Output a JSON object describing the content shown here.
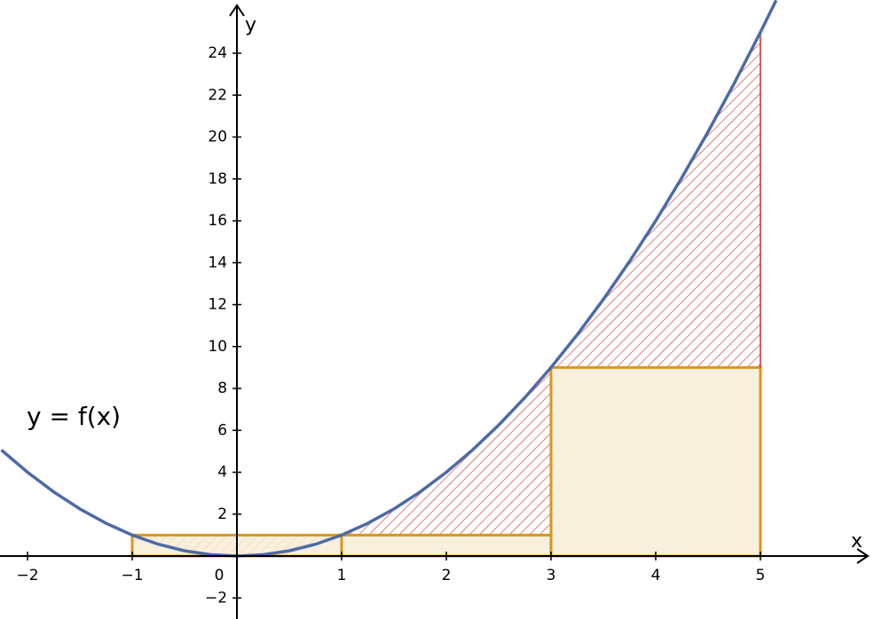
{
  "chart_data": {
    "type": "function-plot",
    "x_label": "x",
    "y_label": "y",
    "annotation": "y = f(x)",
    "curve": {
      "color": "#4d6aa6",
      "x": [
        -2.25,
        -2,
        -1.75,
        -1.5,
        -1.25,
        -1,
        -0.75,
        -0.5,
        -0.25,
        0,
        0.25,
        0.5,
        0.75,
        1,
        1.25,
        1.5,
        1.75,
        2,
        2.25,
        2.5,
        2.75,
        3,
        3.25,
        3.5,
        3.75,
        4,
        4.25,
        4.5,
        4.75,
        5,
        5.15
      ],
      "y": [
        5.0625,
        4,
        3.0625,
        2.25,
        1.5625,
        1,
        0.5625,
        0.25,
        0.0625,
        0,
        0.0625,
        0.25,
        0.5625,
        1,
        1.5625,
        2.25,
        3.0625,
        4,
        5.0625,
        6.25,
        7.5625,
        9,
        10.5625,
        12.25,
        14.0625,
        16,
        18.0625,
        20.25,
        22.5625,
        25,
        26.5225
      ]
    },
    "rectangles": [
      {
        "x": [
          -1,
          1
        ],
        "height": 1
      },
      {
        "x": [
          1,
          3
        ],
        "height": 1
      },
      {
        "x": [
          3,
          5
        ],
        "height": 9
      }
    ],
    "rect_color": "#d9961c",
    "rect_fill": "#f8ecd7",
    "hatch_color": "#cc2b2b",
    "xlim": [
      -2.263,
      6.085
    ],
    "ylim": [
      -3.005,
      26.54
    ],
    "xticks": [
      {
        "value": -2,
        "label": "−2"
      },
      {
        "value": -1,
        "label": "−1"
      },
      0,
      1,
      2,
      3,
      4,
      5
    ],
    "yticks": [
      {
        "value": -2,
        "label": "−2"
      },
      2,
      4,
      6,
      8,
      10,
      12,
      14,
      16,
      18,
      20,
      22,
      24
    ]
  }
}
